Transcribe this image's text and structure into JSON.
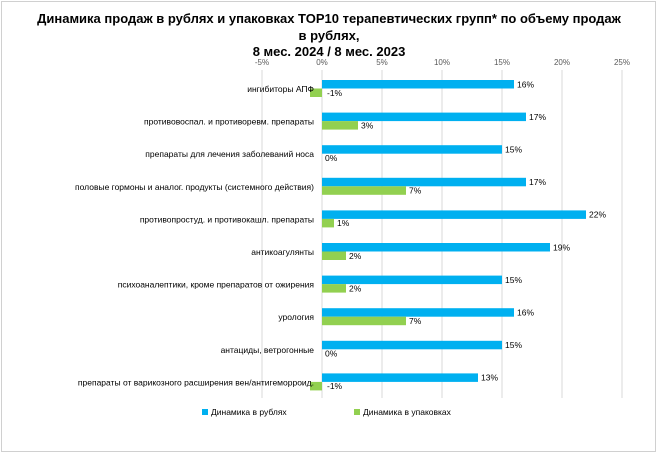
{
  "chart_data": {
    "type": "bar",
    "orientation": "horizontal",
    "title": [
      "Динамика продаж в рублях и упаковках TOP10 терапевтических групп* по объему продаж",
      "в рублях,",
      "8 мес. 2024 / 8 мес. 2023"
    ],
    "xlim": [
      -5,
      25
    ],
    "x_ticks": [
      "-5%",
      "0%",
      "5%",
      "10%",
      "15%",
      "20%",
      "25%"
    ],
    "x_tick_values": [
      -5,
      0,
      5,
      10,
      15,
      20,
      25
    ],
    "grid": true,
    "legend_position": "bottom",
    "categories": [
      "ингибиторы АПФ",
      "противовоспал.  и противоревм.  препараты",
      "препараты для лечения заболеваний носа",
      "половые  гормоны и аналог. продукты  (системного действия)",
      "противопростуд.  и противокашл.  препараты",
      "антикоагулянты",
      "психоаналептики, кроме  препаратов  от ожирения",
      "урология",
      "антациды, ветрогонные",
      "препараты от варикозного расширения вен/антигеморроид."
    ],
    "series": [
      {
        "name": "Динамика в рублях",
        "color": "#00b0f0",
        "values": [
          16,
          17,
          15,
          17,
          22,
          19,
          15,
          16,
          15,
          13
        ],
        "labels": [
          "16%",
          "17%",
          "15%",
          "17%",
          "22%",
          "19%",
          "15%",
          "16%",
          "15%",
          "13%"
        ]
      },
      {
        "name": "Динамика в упаковках",
        "color": "#92d050",
        "values": [
          -1,
          3,
          0,
          7,
          1,
          2,
          2,
          7,
          0,
          -1
        ],
        "labels": [
          "-1%",
          "3%",
          "0%",
          "7%",
          "1%",
          "2%",
          "2%",
          "7%",
          "0%",
          "-1%"
        ]
      }
    ]
  }
}
